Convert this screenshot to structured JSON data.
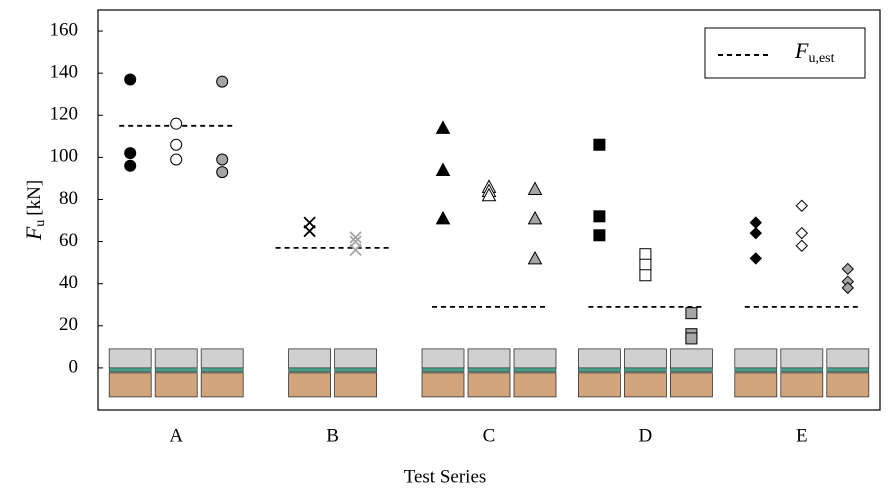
{
  "chart_data": {
    "type": "scatter",
    "x_label": "Test Series",
    "y_label": {
      "symbol": "F",
      "subscript": "u",
      "unit": "[kN]"
    },
    "legend": {
      "symbol": "F",
      "subscript": "u,est"
    },
    "categories": [
      "A",
      "B",
      "C",
      "D",
      "E"
    ],
    "ylim": [
      -20,
      170
    ],
    "yticks": [
      0,
      20,
      40,
      60,
      80,
      100,
      120,
      140,
      160
    ],
    "estimates": [
      115,
      57,
      29,
      29,
      29
    ],
    "series": [
      {
        "category": 0,
        "marker": "circle",
        "color": "#000000",
        "values": [
          137,
          102,
          96
        ]
      },
      {
        "category": 0,
        "marker": "circle",
        "color": "#ffffff",
        "values": [
          116,
          106,
          99
        ]
      },
      {
        "category": 0,
        "marker": "circle",
        "color": "#a6a6a6",
        "values": [
          136,
          99,
          93
        ]
      },
      {
        "category": 1,
        "marker": "cross",
        "color": "#000000",
        "values": [
          69,
          65
        ]
      },
      {
        "category": 1,
        "marker": "cross",
        "color": "#a6a6a6",
        "values": [
          62,
          60,
          56
        ]
      },
      {
        "category": 2,
        "marker": "triangle",
        "color": "#000000",
        "values": [
          114,
          94,
          71
        ]
      },
      {
        "category": 2,
        "marker": "triangle",
        "color": "#ffffff",
        "values": [
          86,
          84,
          82
        ]
      },
      {
        "category": 2,
        "marker": "triangle",
        "color": "#a6a6a6",
        "values": [
          85,
          71,
          52
        ]
      },
      {
        "category": 3,
        "marker": "square",
        "color": "#000000",
        "values": [
          106,
          72,
          63
        ]
      },
      {
        "category": 3,
        "marker": "square",
        "color": "#ffffff",
        "values": [
          54,
          49,
          44
        ]
      },
      {
        "category": 3,
        "marker": "square",
        "color": "#a6a6a6",
        "values": [
          26,
          16,
          14
        ]
      },
      {
        "category": 4,
        "marker": "diamond",
        "color": "#000000",
        "values": [
          69,
          64,
          52
        ]
      },
      {
        "category": 4,
        "marker": "diamond",
        "color": "#ffffff",
        "values": [
          77,
          64,
          58
        ]
      },
      {
        "category": 4,
        "marker": "diamond",
        "color": "#a6a6a6",
        "values": [
          47,
          41,
          38
        ]
      }
    ]
  }
}
